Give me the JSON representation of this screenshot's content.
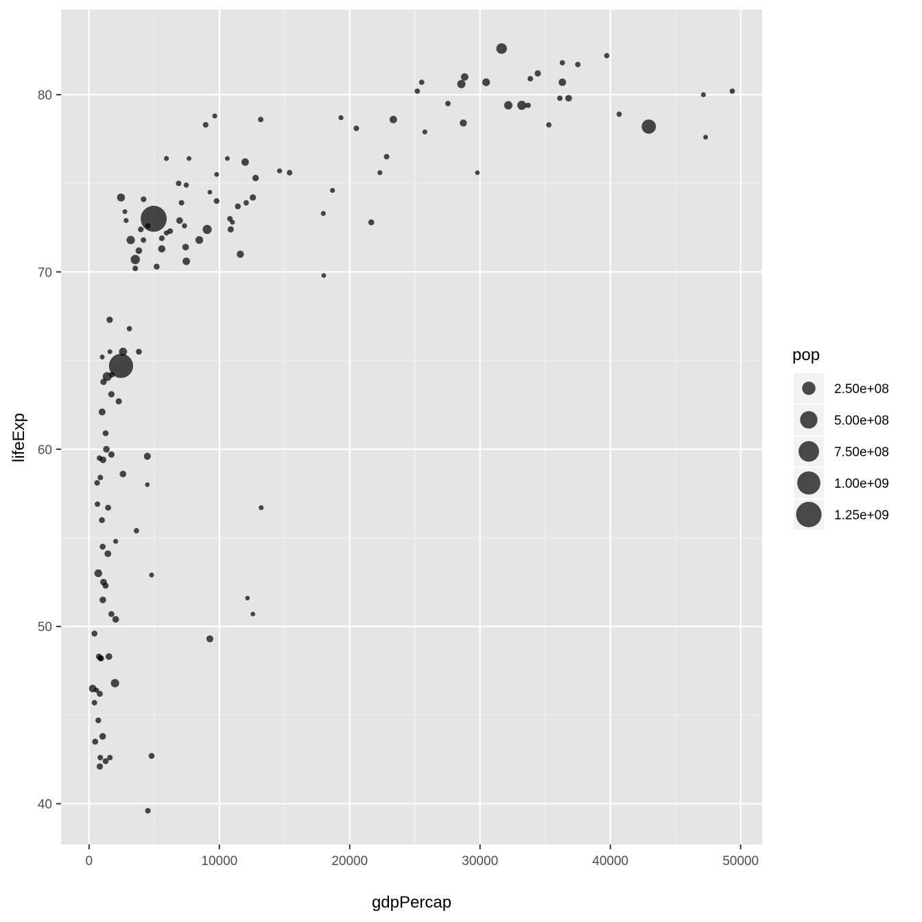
{
  "chart_data": {
    "type": "scatter",
    "xlabel": "gdpPercap",
    "ylabel": "lifeExp",
    "xlim": [
      -2150,
      51650
    ],
    "ylim": [
      37.7,
      84.8
    ],
    "x_ticks": [
      0,
      10000,
      20000,
      30000,
      40000,
      50000
    ],
    "x_tick_labels": [
      "0",
      "10000",
      "20000",
      "30000",
      "40000",
      "50000"
    ],
    "y_ticks": [
      40,
      50,
      60,
      70,
      80
    ],
    "y_tick_labels": [
      "40",
      "50",
      "60",
      "70",
      "80"
    ],
    "grid": true,
    "point_color": "#000000",
    "point_opacity": 0.7,
    "panel_background": "#e5e5e5",
    "size_legend": {
      "title": "pop",
      "placement": "right",
      "entries": [
        {
          "label": "2.50e+08",
          "value": 250000000
        },
        {
          "label": "5.00e+08",
          "value": 500000000
        },
        {
          "label": "7.50e+08",
          "value": 750000000
        },
        {
          "label": "1.00e+09",
          "value": 1000000000
        },
        {
          "label": "1.25e+09",
          "value": 1250000000
        }
      ]
    },
    "points": [
      [
        31656,
        82.6,
        127000000
      ],
      [
        39724,
        82.2,
        8000000
      ],
      [
        36319,
        81.8,
        7500000
      ],
      [
        37506,
        81.7,
        9000000
      ],
      [
        34435,
        81.2,
        20000000
      ],
      [
        28821,
        81.0,
        40000000
      ],
      [
        33860,
        80.9,
        10000000
      ],
      [
        25524,
        80.7,
        8000000
      ],
      [
        30470,
        80.7,
        45000000
      ],
      [
        36319,
        80.7,
        40000000
      ],
      [
        28569,
        80.6,
        58000000
      ],
      [
        25186,
        80.2,
        8000000
      ],
      [
        49357,
        80.2,
        8000000
      ],
      [
        47143,
        80.0,
        5000000
      ],
      [
        36126,
        79.8,
        9000000
      ],
      [
        36798,
        79.8,
        25000000
      ],
      [
        27538,
        79.5,
        9000000
      ],
      [
        32170,
        79.4,
        60000000
      ],
      [
        33207,
        79.4,
        80000000
      ],
      [
        33692,
        79.4,
        9000000
      ],
      [
        40676,
        78.9,
        8000000
      ],
      [
        19329,
        78.7,
        5000000
      ],
      [
        9645,
        78.8,
        5000000
      ],
      [
        23348,
        78.6,
        40000000
      ],
      [
        28718,
        78.4,
        33000000
      ],
      [
        13172,
        78.6,
        10000000
      ],
      [
        8948,
        78.3,
        11000000
      ],
      [
        35278,
        78.3,
        8000000
      ],
      [
        42952,
        78.2,
        301000000
      ],
      [
        20510,
        78.1,
        10000000
      ],
      [
        25768,
        77.9,
        5000000
      ],
      [
        47307,
        77.6,
        4000000
      ],
      [
        5937,
        76.4,
        5000000
      ],
      [
        7670,
        76.4,
        4000000
      ],
      [
        10611,
        76.4,
        4000000
      ],
      [
        11978,
        76.2,
        40000000
      ],
      [
        22833,
        76.5,
        10000000
      ],
      [
        14619,
        75.7,
        5000000
      ],
      [
        15390,
        75.6,
        10000000
      ],
      [
        22316,
        75.6,
        5000000
      ],
      [
        29796,
        75.6,
        3000000
      ],
      [
        9787,
        75.5,
        4000000
      ],
      [
        12779,
        75.3,
        22000000
      ],
      [
        6873,
        75.0,
        10000000
      ],
      [
        7458,
        74.9,
        7000000
      ],
      [
        18679,
        74.6,
        5000000
      ],
      [
        9270,
        74.5,
        3000000
      ],
      [
        2452,
        74.2,
        50000000
      ],
      [
        4184,
        74.1,
        12000000
      ],
      [
        12570,
        74.2,
        20000000
      ],
      [
        9786,
        74.0,
        12000000
      ],
      [
        12057,
        73.9,
        9000000
      ],
      [
        7092,
        73.9,
        10000000
      ],
      [
        11416,
        73.7,
        15000000
      ],
      [
        2749,
        73.4,
        4000000
      ],
      [
        17974,
        73.3,
        5000000
      ],
      [
        10808,
        73.0,
        10000000
      ],
      [
        11003,
        72.8,
        4000000
      ],
      [
        2842,
        72.9,
        5000000
      ],
      [
        6946,
        72.9,
        25000000
      ],
      [
        4959,
        73.0,
        1318000000
      ],
      [
        21655,
        72.8,
        15000000
      ],
      [
        7320,
        72.6,
        7000000
      ],
      [
        4513,
        72.6,
        10000000
      ],
      [
        10869,
        72.4,
        20000000
      ],
      [
        9065,
        72.4,
        80000000
      ],
      [
        3970,
        72.4,
        12000000
      ],
      [
        5938,
        72.2,
        7000000
      ],
      [
        6223,
        72.3,
        12000000
      ],
      [
        8458,
        71.8,
        45000000
      ],
      [
        3195,
        71.8,
        60000000
      ],
      [
        4173,
        71.8,
        10000000
      ],
      [
        5581,
        71.9,
        12000000
      ],
      [
        3820,
        71.2,
        25000000
      ],
      [
        7408,
        71.4,
        25000000
      ],
      [
        5580,
        71.3,
        35000000
      ],
      [
        11606,
        71.0,
        35000000
      ],
      [
        3548,
        70.7,
        85000000
      ],
      [
        7460,
        70.6,
        40000000
      ],
      [
        3548,
        70.2,
        10000000
      ],
      [
        5186,
        70.3,
        15000000
      ],
      [
        18009,
        69.8,
        3000000
      ],
      [
        1580,
        67.3,
        20000000
      ],
      [
        3095,
        66.8,
        8000000
      ],
      [
        2605,
        65.5,
        55000000
      ],
      [
        3820,
        65.5,
        15000000
      ],
      [
        1598,
        65.5,
        4000000
      ],
      [
        1008,
        65.2,
        4000000
      ],
      [
        2452,
        64.7,
        1110000000
      ],
      [
        1390,
        64.1,
        75000000
      ],
      [
        1753,
        64.2,
        10000000
      ],
      [
        1107,
        63.8,
        20000000
      ],
      [
        1713,
        63.1,
        20000000
      ],
      [
        2280,
        62.7,
        18000000
      ],
      [
        1001,
        62.1,
        30000000
      ],
      [
        1270,
        60.9,
        15000000
      ],
      [
        1328,
        60.0,
        25000000
      ],
      [
        1713,
        59.7,
        20000000
      ],
      [
        4470,
        59.6,
        30000000
      ],
      [
        797,
        59.5,
        10000000
      ],
      [
        1070,
        59.4,
        25000000
      ],
      [
        2602,
        58.6,
        25000000
      ],
      [
        863,
        58.4,
        10000000
      ],
      [
        619,
        58.1,
        10000000
      ],
      [
        4471,
        58.0,
        3000000
      ],
      [
        642,
        56.9,
        10000000
      ],
      [
        1463,
        56.7,
        15000000
      ],
      [
        13206,
        56.7,
        5000000
      ],
      [
        986,
        56.0,
        15000000
      ],
      [
        2042,
        54.8,
        5000000
      ],
      [
        3632,
        55.4,
        8000000
      ],
      [
        1043,
        54.5,
        15000000
      ],
      [
        1441,
        54.1,
        25000000
      ],
      [
        707,
        53.0,
        45000000
      ],
      [
        4797,
        52.9,
        5000000
      ],
      [
        1107,
        52.5,
        25000000
      ],
      [
        1270,
        52.3,
        15000000
      ],
      [
        1057,
        51.5,
        25000000
      ],
      [
        12154,
        51.6,
        3000000
      ],
      [
        1712,
        50.7,
        15000000
      ],
      [
        12570,
        50.7,
        3000000
      ],
      [
        2042,
        50.4,
        25000000
      ],
      [
        415,
        49.6,
        15000000
      ],
      [
        9269,
        49.3,
        30000000
      ],
      [
        1522,
        48.3,
        25000000
      ],
      [
        759,
        48.3,
        15000000
      ],
      [
        926,
        48.2,
        15000000
      ],
      [
        863,
        48.2,
        10000000
      ],
      [
        1988,
        46.8,
        60000000
      ],
      [
        278,
        46.5,
        40000000
      ],
      [
        579,
        46.4,
        5000000
      ],
      [
        824,
        46.2,
        15000000
      ],
      [
        415,
        45.7,
        10000000
      ],
      [
        706,
        44.7,
        12000000
      ],
      [
        1043,
        43.8,
        25000000
      ],
      [
        470,
        43.5,
        15000000
      ],
      [
        4797,
        42.7,
        15000000
      ],
      [
        863,
        42.6,
        10000000
      ],
      [
        1598,
        42.6,
        10000000
      ],
      [
        1270,
        42.4,
        15000000
      ],
      [
        824,
        42.1,
        20000000
      ],
      [
        4513,
        39.6,
        10000000
      ]
    ]
  }
}
